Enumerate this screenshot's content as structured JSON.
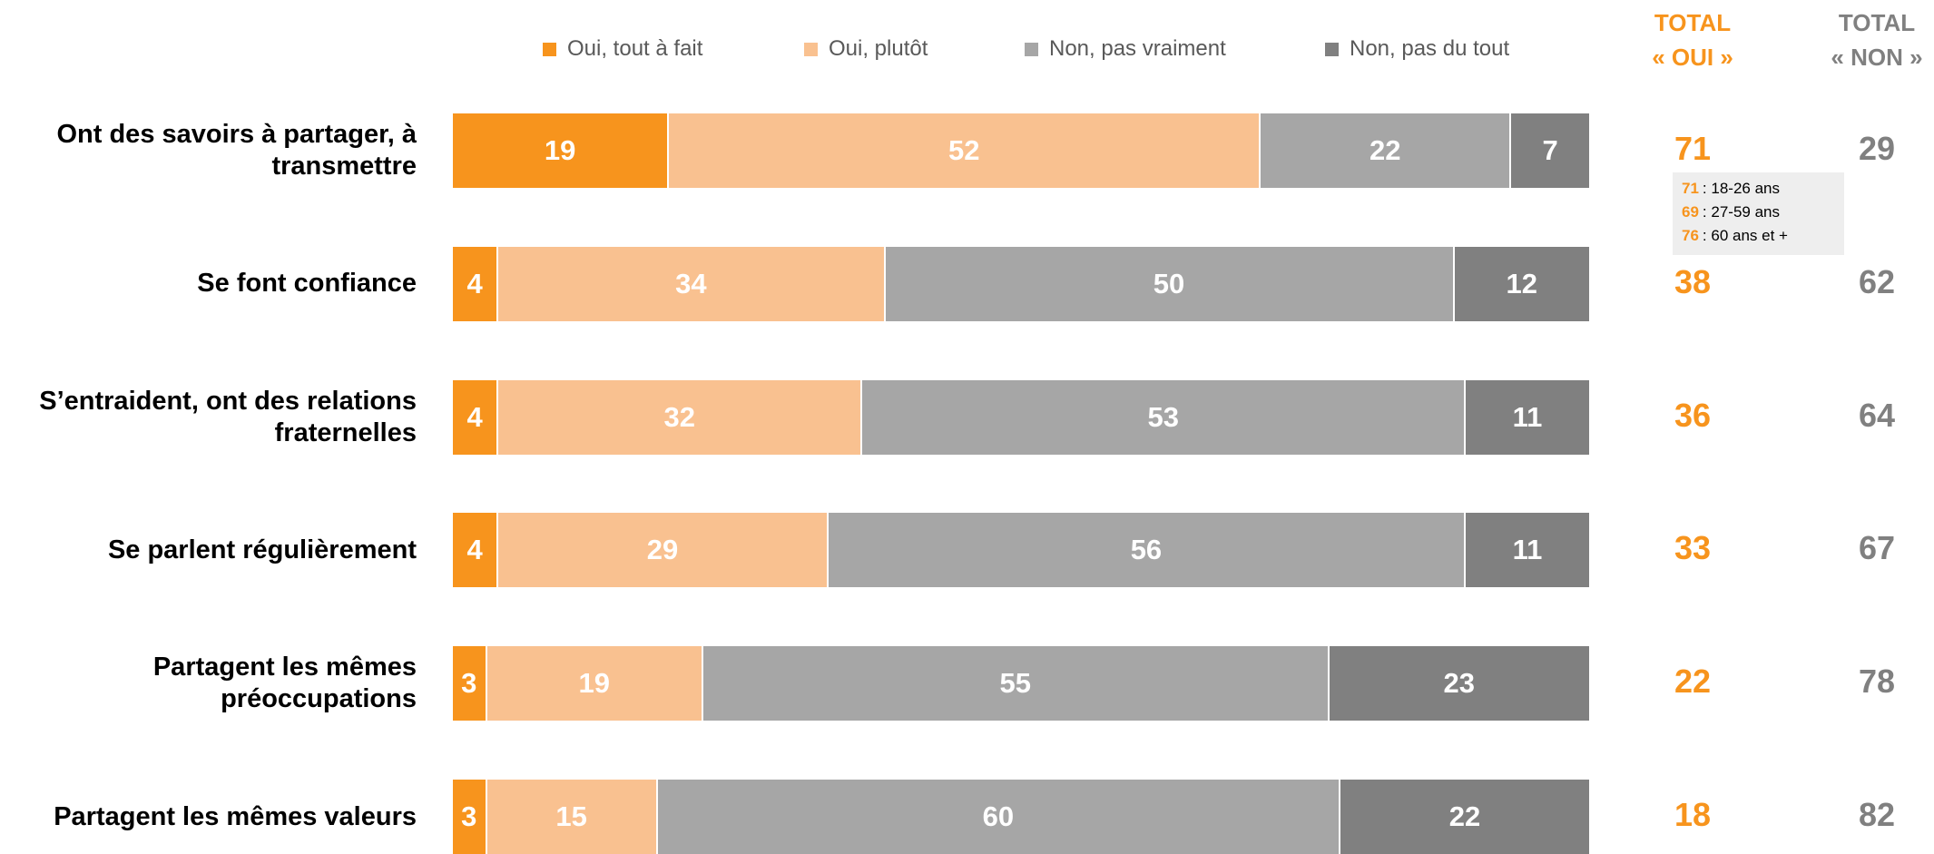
{
  "chart_data": {
    "type": "stacked_bar_horizontal",
    "categories": [
      "Ont des savoirs à partager, à transmettre",
      "Se font confiance",
      "S’entraident, ont des relations fraternelles",
      "Se parlent régulièrement",
      "Partagent les mêmes préoccupations",
      "Partagent les mêmes valeurs"
    ],
    "series": [
      {
        "name": "Oui, tout à fait",
        "color": "#f7941d",
        "values": [
          19,
          4,
          4,
          4,
          3,
          3
        ]
      },
      {
        "name": "Oui, plutôt",
        "color": "#f9c190",
        "values": [
          52,
          34,
          32,
          29,
          19,
          15
        ]
      },
      {
        "name": "Non, pas vraiment",
        "color": "#a6a6a6",
        "values": [
          22,
          50,
          53,
          56,
          55,
          60
        ]
      },
      {
        "name": "Non, pas du tout",
        "color": "#808080",
        "values": [
          7,
          12,
          11,
          11,
          23,
          22
        ]
      }
    ],
    "xlim": [
      0,
      100
    ],
    "legend": "top",
    "totals": [
      {
        "header": [
          "TOTAL",
          "« OUI »"
        ],
        "color": "#f7941d",
        "values": [
          71,
          38,
          36,
          33,
          22,
          18
        ]
      },
      {
        "header": [
          "TOTAL",
          "« NON »"
        ],
        "color": "#808080",
        "values": [
          29,
          62,
          64,
          67,
          78,
          82
        ]
      }
    ],
    "annotation": [
      {
        "value": 71,
        "label": ": 18-26 ans"
      },
      {
        "value": 69,
        "label": ": 27-59 ans"
      },
      {
        "value": 76,
        "label": ": 60 ans et +"
      }
    ]
  }
}
